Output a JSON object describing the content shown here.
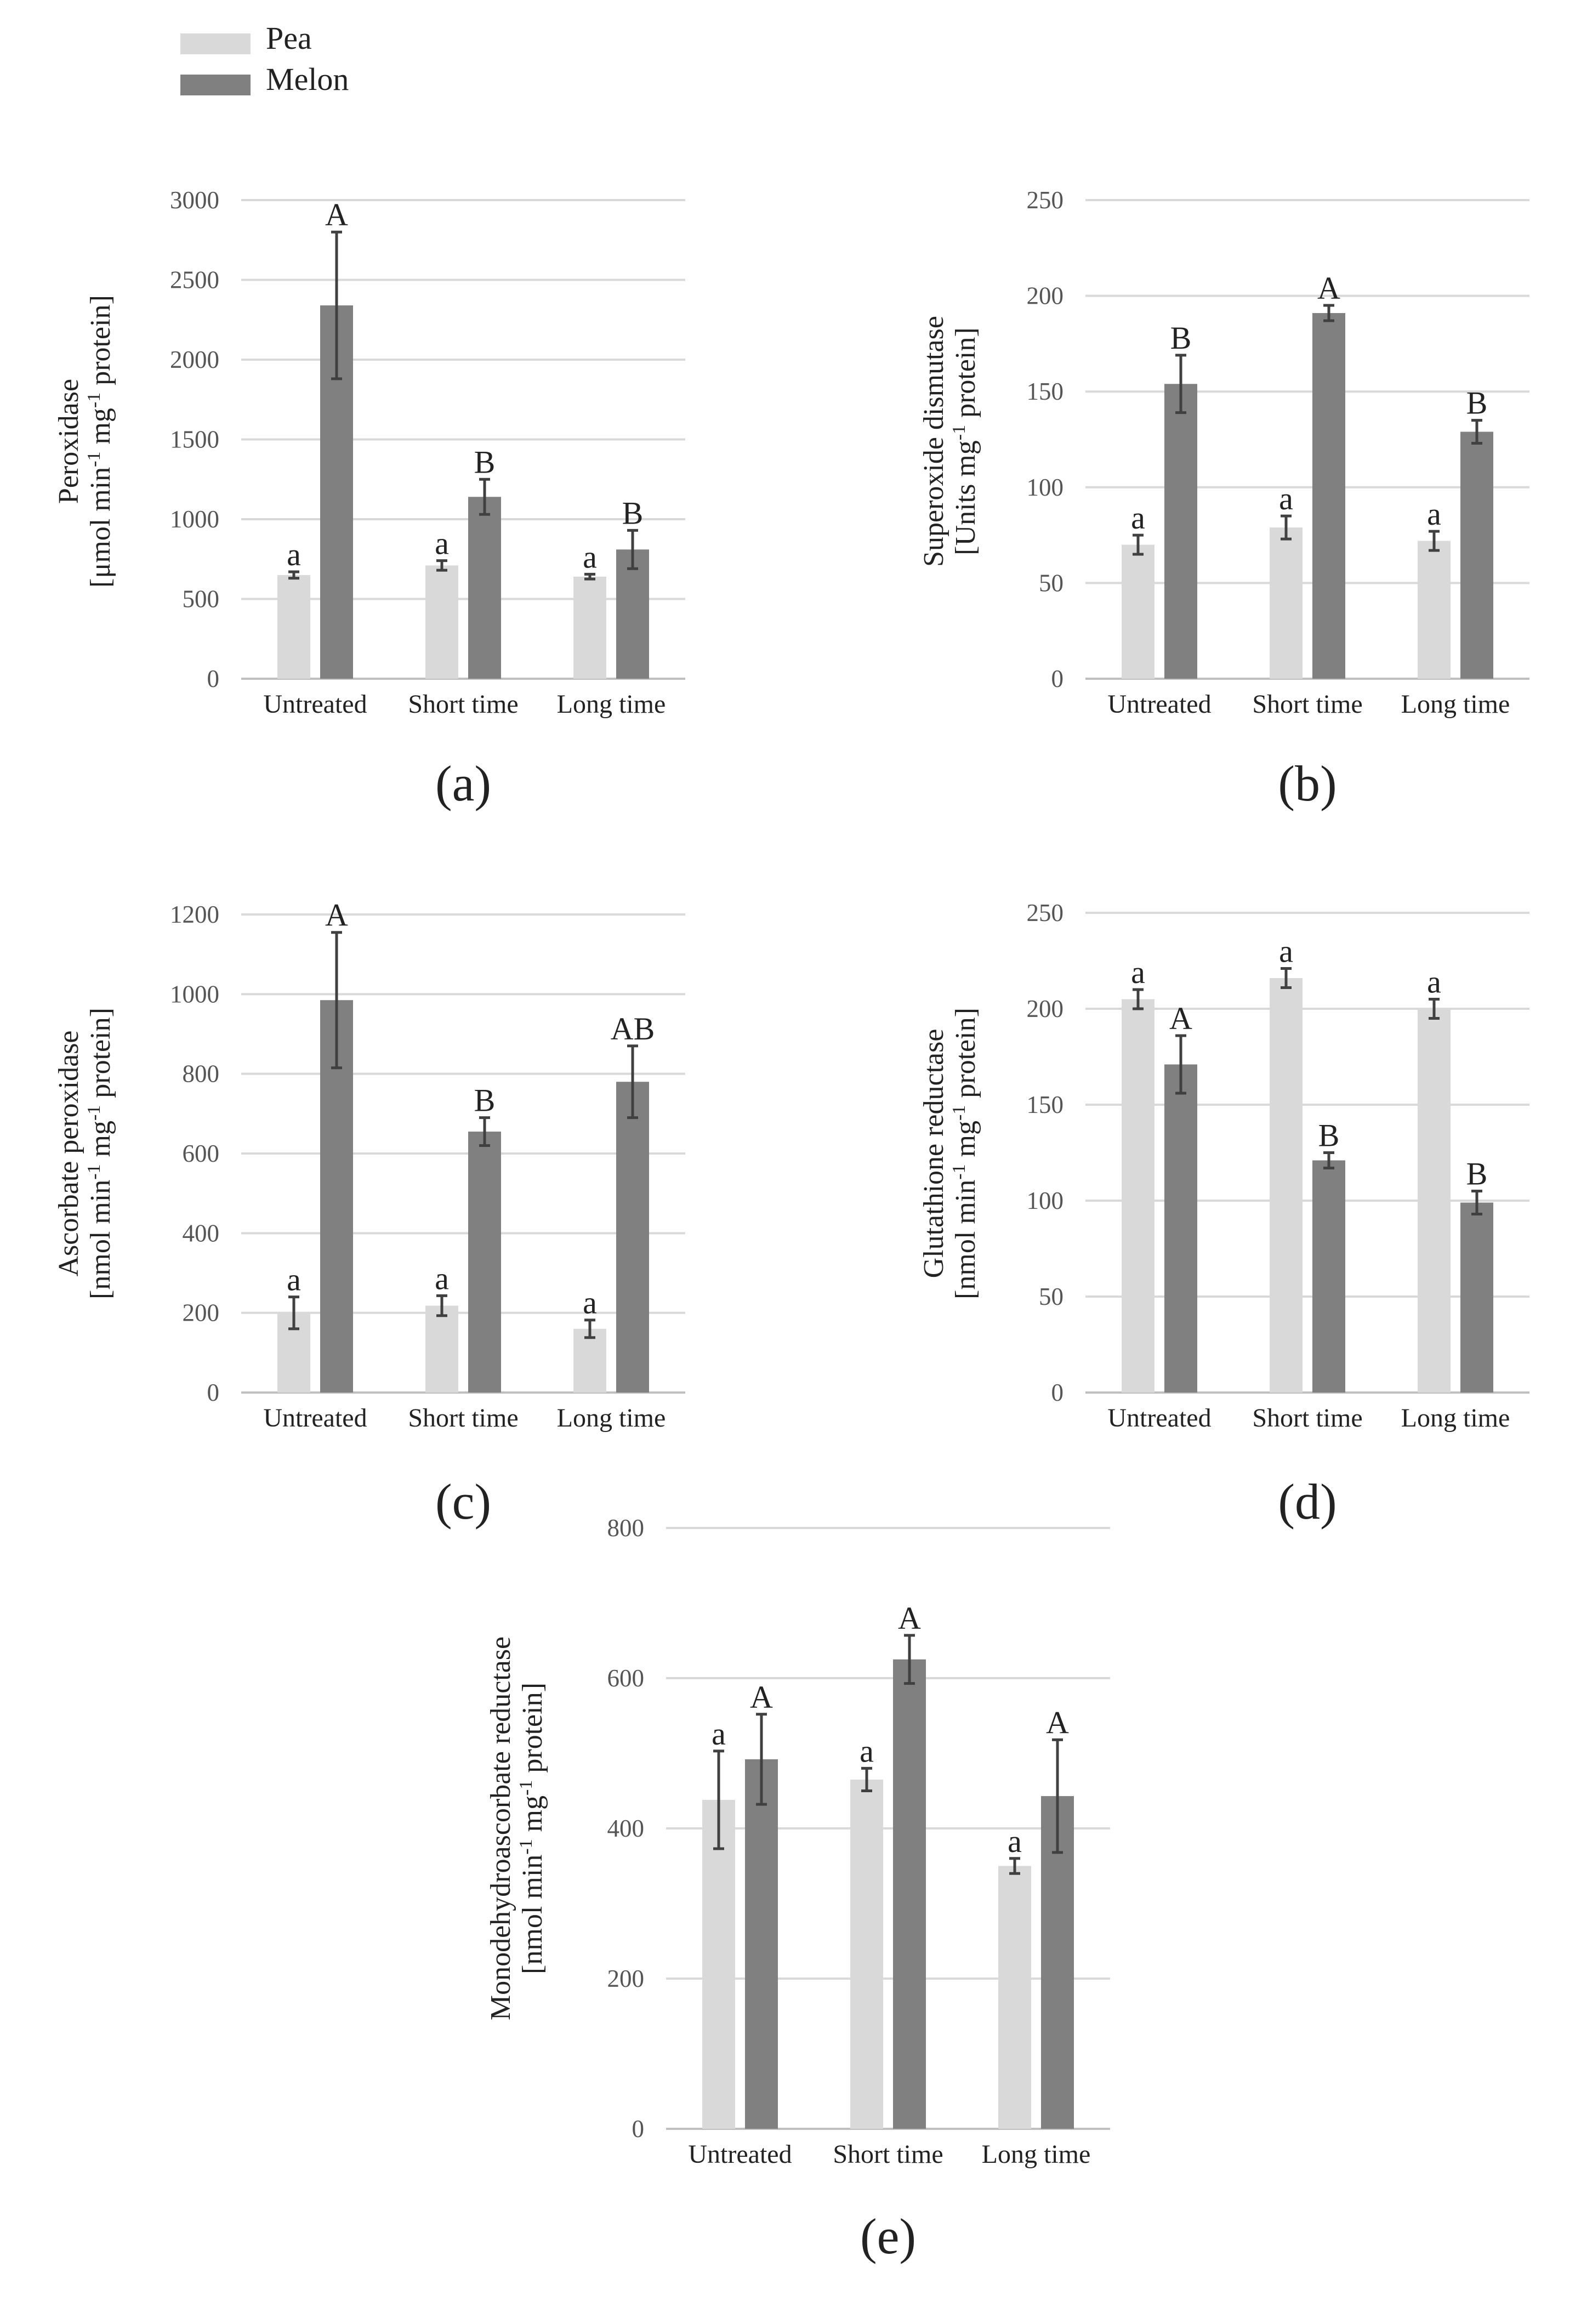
{
  "legend": {
    "items": [
      {
        "label": "Pea",
        "color": "#d9d9d9"
      },
      {
        "label": "Melon",
        "color": "#808080"
      }
    ]
  },
  "chart_data": [
    {
      "type": "bar",
      "panel_label": "(a)",
      "ylabel": [
        "Peroxidase",
        "[μmol min-1 mg-1 protein]"
      ],
      "categories": [
        "Untreated",
        "Short time",
        "Long time"
      ],
      "ylim": [
        0,
        3000
      ],
      "yticks": [
        0,
        500,
        1000,
        1500,
        2000,
        2500,
        3000
      ],
      "grid": true,
      "series": [
        {
          "name": "Pea",
          "color": "#d9d9d9",
          "values": [
            650,
            710,
            640
          ],
          "errors": [
            20,
            30,
            15
          ],
          "letters": [
            "a",
            "a",
            "a"
          ]
        },
        {
          "name": "Melon",
          "color": "#808080",
          "values": [
            2340,
            1140,
            810
          ],
          "errors": [
            460,
            110,
            120
          ],
          "letters": [
            "A",
            "B",
            "B"
          ]
        }
      ]
    },
    {
      "type": "bar",
      "panel_label": "(b)",
      "ylabel": [
        "Superoxide dismutase",
        "[Units mg-1 protein]"
      ],
      "categories": [
        "Untreated",
        "Short time",
        "Long time"
      ],
      "ylim": [
        0,
        250
      ],
      "yticks": [
        0,
        50,
        100,
        150,
        200,
        250
      ],
      "grid": true,
      "series": [
        {
          "name": "Pea",
          "color": "#d9d9d9",
          "values": [
            70,
            79,
            72
          ],
          "errors": [
            5,
            6,
            5
          ],
          "letters": [
            "a",
            "a",
            "a"
          ]
        },
        {
          "name": "Melon",
          "color": "#808080",
          "values": [
            154,
            191,
            129
          ],
          "errors": [
            15,
            4,
            6
          ],
          "letters": [
            "B",
            "A",
            "B"
          ]
        }
      ]
    },
    {
      "type": "bar",
      "panel_label": "(c)",
      "ylabel": [
        "Ascorbate peroxidase",
        "[nmol min-1 mg-1 protein]"
      ],
      "categories": [
        "Untreated",
        "Short time",
        "Long time"
      ],
      "ylim": [
        0,
        1200
      ],
      "yticks": [
        0,
        200,
        400,
        600,
        800,
        1000,
        1200
      ],
      "grid": true,
      "series": [
        {
          "name": "Pea",
          "color": "#d9d9d9",
          "values": [
            200,
            218,
            160
          ],
          "errors": [
            40,
            25,
            22
          ],
          "letters": [
            "a",
            "a",
            "a"
          ]
        },
        {
          "name": "Melon",
          "color": "#808080",
          "values": [
            985,
            655,
            780
          ],
          "errors": [
            170,
            35,
            90
          ],
          "letters": [
            "A",
            "B",
            "AB"
          ]
        }
      ]
    },
    {
      "type": "bar",
      "panel_label": "(d)",
      "ylabel": [
        "Glutathione reductase",
        "[nmol min-1 mg-1 protein]"
      ],
      "categories": [
        "Untreated",
        "Short time",
        "Long time"
      ],
      "ylim": [
        0,
        250
      ],
      "yticks": [
        0,
        50,
        100,
        150,
        200,
        250
      ],
      "grid": true,
      "series": [
        {
          "name": "Pea",
          "color": "#d9d9d9",
          "values": [
            205,
            216,
            200
          ],
          "errors": [
            5,
            5,
            5
          ],
          "letters": [
            "a",
            "a",
            "a"
          ]
        },
        {
          "name": "Melon",
          "color": "#808080",
          "values": [
            171,
            121,
            99
          ],
          "errors": [
            15,
            4,
            6
          ],
          "letters": [
            "A",
            "B",
            "B"
          ]
        }
      ]
    },
    {
      "type": "bar",
      "panel_label": "(e)",
      "ylabel": [
        "Monodehydroascorbate reductase",
        "[nmol min-1 mg-1 protein]"
      ],
      "categories": [
        "Untreated",
        "Short time",
        "Long time"
      ],
      "ylim": [
        0,
        800
      ],
      "yticks": [
        0,
        200,
        400,
        600,
        800
      ],
      "grid": true,
      "series": [
        {
          "name": "Pea",
          "color": "#d9d9d9",
          "values": [
            438,
            465,
            350
          ],
          "errors": [
            65,
            15,
            10
          ],
          "letters": [
            "a",
            "a",
            "a"
          ]
        },
        {
          "name": "Melon",
          "color": "#808080",
          "values": [
            492,
            625,
            443
          ],
          "errors": [
            60,
            32,
            75
          ],
          "letters": [
            "A",
            "A",
            "A"
          ]
        }
      ]
    }
  ]
}
